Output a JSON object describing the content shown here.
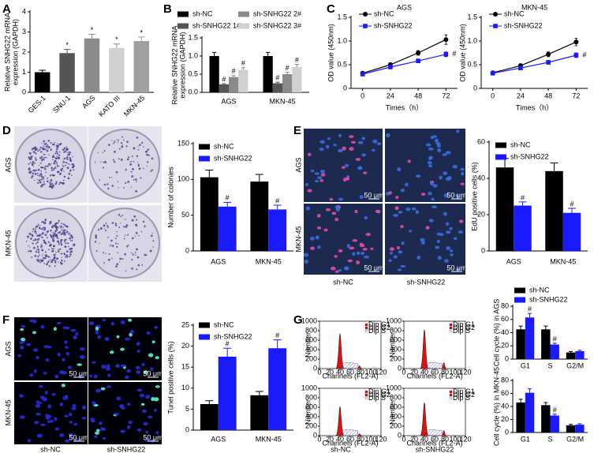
{
  "panel_labels": [
    "A",
    "B",
    "C",
    "D",
    "E",
    "F",
    "G"
  ],
  "chart_data": [
    {
      "type": "bar",
      "ylabel": [
        "Relative SNHG22 mRNA",
        "expression (GAPDH)"
      ],
      "categories": [
        "GES-1",
        "SNU-1",
        "AGS",
        "KATO III",
        "MKN-45"
      ],
      "values": [
        1.0,
        1.95,
        2.68,
        2.2,
        2.55
      ],
      "errors": [
        0.1,
        0.18,
        0.2,
        0.2,
        0.2
      ],
      "colors": [
        "#000000",
        "#555555",
        "#8a8a8a",
        "#d0d0d0",
        "#a0a0a0"
      ],
      "annotations": [
        null,
        "*",
        "*",
        "*",
        "*"
      ],
      "ylim": [
        0,
        4
      ],
      "yticks": [
        0,
        1,
        2,
        3,
        4
      ]
    },
    {
      "type": "bar",
      "ylabel": [
        "Relative SNHG22 mRNA",
        "expression (GAPDH)"
      ],
      "categories": [
        "AGS",
        "MKN-45"
      ],
      "series": [
        {
          "name": "sh-NC",
          "color": "#000000",
          "values": [
            1.0,
            1.0
          ],
          "errors": [
            0.1,
            0.1
          ]
        },
        {
          "name": "sh-SNHG22 1#",
          "color": "#555555",
          "values": [
            0.22,
            0.25
          ],
          "errors": [
            0.02,
            0.03
          ],
          "annotation": "#"
        },
        {
          "name": "sh-SNHG22 2#",
          "color": "#8a8a8a",
          "values": [
            0.42,
            0.5
          ],
          "errors": [
            0.04,
            0.05
          ],
          "annotation": "#"
        },
        {
          "name": "sh-SNHG22 3#",
          "color": "#d0d0d0",
          "values": [
            0.62,
            0.7
          ],
          "errors": [
            0.06,
            0.07
          ],
          "annotation": "#"
        }
      ],
      "ylim": [
        0,
        1.5
      ],
      "yticks": [
        {
          "value": 0,
          "label": "0.0"
        },
        0.5,
        {
          "value": 1,
          "label": "1.0"
        },
        1.5
      ]
    },
    {
      "type": "line",
      "title": "AGS",
      "ylabel": "OD value (450nm)",
      "xlabel": "Times（h）",
      "x": [
        0,
        24,
        48,
        72
      ],
      "xlim": [
        -10,
        82
      ],
      "xticks": [
        0,
        24,
        48,
        72
      ],
      "ylim": [
        0,
        1.5
      ],
      "yticks": [
        0,
        0.5,
        {
          "value": 1,
          "label": "1.0"
        },
        1.5
      ],
      "series": [
        {
          "name": "sh-NC",
          "color": "#000000",
          "marker": "circle",
          "values": [
            0.32,
            0.5,
            0.75,
            1.03
          ],
          "errors": [
            0.02,
            0.04,
            0.05,
            0.1
          ]
        },
        {
          "name": "sh-SNHG22",
          "color": "#1a1aff",
          "marker": "square",
          "values": [
            0.3,
            0.45,
            0.58,
            0.72
          ],
          "errors": [
            0.02,
            0.03,
            0.04,
            0.05
          ],
          "annotation": "#"
        }
      ]
    },
    {
      "type": "line",
      "title": "MKN-45",
      "ylabel": "OD value (450nm)",
      "xlabel": "Times（h）",
      "x": [
        0,
        24,
        48,
        72
      ],
      "xlim": [
        -10,
        82
      ],
      "xticks": [
        0,
        24,
        48,
        72
      ],
      "ylim": [
        0,
        1.5
      ],
      "yticks": [
        0,
        0.5,
        {
          "value": 1,
          "label": "1.0"
        },
        1.5
      ],
      "series": [
        {
          "name": "sh-NC",
          "color": "#000000",
          "marker": "circle",
          "values": [
            0.33,
            0.48,
            0.72,
            0.98
          ],
          "errors": [
            0.02,
            0.04,
            0.05,
            0.08
          ]
        },
        {
          "name": "sh-SNHG22",
          "color": "#1a1aff",
          "marker": "square",
          "values": [
            0.32,
            0.43,
            0.55,
            0.7
          ],
          "errors": [
            0.02,
            0.03,
            0.04,
            0.05
          ],
          "annotation": "#"
        }
      ]
    },
    {
      "type": "bar",
      "ylabel": "Number of colonies",
      "categories": [
        "AGS",
        "MKN-45"
      ],
      "series": [
        {
          "name": "sh-NC",
          "color": "#000000",
          "values": [
            103,
            97
          ],
          "errors": [
            10,
            10
          ]
        },
        {
          "name": "sh-SNHG22",
          "color": "#1a1aff",
          "values": [
            62,
            58
          ],
          "errors": [
            6,
            6
          ],
          "annotation": "#"
        }
      ],
      "ylim": [
        0,
        150
      ],
      "yticks": [
        0,
        50,
        100,
        150
      ]
    },
    {
      "type": "bar",
      "ylabel": "EdU positive cells (%)",
      "categories": [
        "AGS",
        "MKN-45"
      ],
      "series": [
        {
          "name": "sh-NC",
          "color": "#000000",
          "values": [
            46,
            44
          ],
          "errors": [
            5,
            4.5
          ]
        },
        {
          "name": "sh-SNHG22",
          "color": "#1a1aff",
          "values": [
            25,
            21
          ],
          "errors": [
            2,
            2.5
          ],
          "annotation": "#"
        }
      ],
      "ylim": [
        0,
        60
      ],
      "yticks": [
        0,
        20,
        40,
        60
      ]
    },
    {
      "type": "bar",
      "ylabel": "Tunel positive cells (%)",
      "categories": [
        "AGS",
        "MKN-45"
      ],
      "series": [
        {
          "name": "sh-NC",
          "color": "#000000",
          "values": [
            6.2,
            8.3
          ],
          "errors": [
            0.8,
            0.9
          ]
        },
        {
          "name": "sh-SNHG22",
          "color": "#1a1aff",
          "values": [
            17.5,
            19.5
          ],
          "errors": [
            2,
            2
          ],
          "annotation": "#"
        }
      ],
      "ylim": [
        0,
        25
      ],
      "yticks": [
        0,
        5,
        10,
        15,
        20,
        25
      ]
    },
    {
      "type": "bar",
      "ylabel": "Cell cycle (%) in AGS",
      "categories": [
        "G1",
        "S",
        "G2/M"
      ],
      "series": [
        {
          "name": "sh-NC",
          "color": "#000000",
          "values": [
            45,
            45,
            10
          ],
          "errors": [
            5,
            5,
            1.5
          ]
        },
        {
          "name": "sh-SNHG22",
          "color": "#1a1aff",
          "values": [
            63,
            22,
            12
          ],
          "errors": [
            6,
            2,
            1.5
          ],
          "annotations": [
            "#",
            "#",
            null
          ]
        }
      ],
      "ylim": [
        0,
        80
      ],
      "yticks": [
        0,
        20,
        40,
        60,
        80
      ]
    },
    {
      "type": "bar",
      "ylabel": "Cell cycle (%) in MKN-45",
      "categories": [
        "G1",
        "S",
        "G2/M"
      ],
      "series": [
        {
          "name": "sh-NC",
          "color": "#000000",
          "values": [
            46,
            42,
            11
          ],
          "errors": [
            5,
            4,
            1.5
          ]
        },
        {
          "name": "sh-SNHG22",
          "color": "#1a1aff",
          "values": [
            61,
            26,
            12
          ],
          "errors": [
            6,
            2,
            1.5
          ],
          "annotations": [
            null,
            "#",
            null
          ]
        }
      ],
      "ylim": [
        0,
        80
      ],
      "yticks": [
        0,
        20,
        40,
        60,
        80
      ]
    }
  ],
  "images": {
    "D": {
      "rows": [
        "AGS",
        "MKN-45"
      ]
    },
    "E": {
      "rows": [
        "AGS",
        "MKN-45"
      ],
      "cols": [
        "sh-NC",
        "sh-SNHG22"
      ],
      "scale": "50 μm"
    },
    "F": {
      "rows": [
        "AGS",
        "MKN-45"
      ],
      "cols": [
        "sh-NC",
        "sh-SNHG22"
      ],
      "scale": "50 μm"
    },
    "G": {
      "cols": [
        "sh-NC",
        "sh-SNHG22"
      ],
      "ylabel": "Number",
      "xlabel": "Channels (FL2-A)",
      "legend": [
        "Dip G1",
        "Dip G2",
        "Dip S"
      ],
      "xticks": [
        0,
        20,
        40,
        60,
        80,
        100,
        120
      ],
      "yticks": [
        0,
        200,
        400,
        600,
        800,
        1000
      ]
    }
  }
}
